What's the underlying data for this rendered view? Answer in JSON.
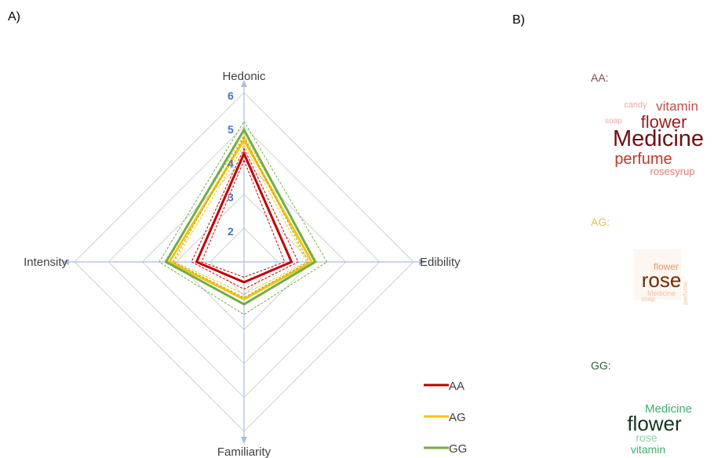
{
  "panels": {
    "a": "A)",
    "b": "B)"
  },
  "chart_data": [
    {
      "type": "radar",
      "axes": [
        "Hedonic",
        "Edibility",
        "Familiarity",
        "Intensity"
      ],
      "rlim": [
        1,
        6
      ],
      "ticks": [
        "2",
        "3",
        "4",
        "5",
        "6"
      ],
      "grid": true,
      "legend_position": "bottom-right",
      "series": [
        {
          "name": "AA",
          "color": "#C00000",
          "values": [
            4.2,
            2.4,
            1.6,
            2.4
          ],
          "ci_upper": [
            4.35,
            2.6,
            1.8,
            2.55
          ],
          "ci_lower": [
            4.0,
            2.2,
            1.45,
            2.25
          ]
        },
        {
          "name": "AG",
          "color": "#FFC000",
          "values": [
            4.6,
            3.0,
            2.1,
            3.2
          ],
          "ci_upper": [
            4.75,
            3.15,
            2.25,
            3.35
          ],
          "ci_lower": [
            4.45,
            2.85,
            1.95,
            3.05
          ]
        },
        {
          "name": "GG",
          "color": "#70AD47",
          "values": [
            4.9,
            3.1,
            2.25,
            3.3
          ],
          "ci_upper": [
            5.15,
            3.45,
            2.55,
            3.5
          ],
          "ci_lower": [
            4.7,
            2.9,
            2.05,
            3.1
          ]
        }
      ]
    },
    {
      "type": "wordcloud",
      "groups": [
        {
          "label": "AA:",
          "label_color": "#7F4F4F",
          "words": [
            {
              "text": "candy",
              "color": "#F2A5A5",
              "size": 11
            },
            {
              "text": "vitamin",
              "color": "#C0504D",
              "size": 17
            },
            {
              "text": "soap",
              "color": "#F2A5A5",
              "size": 10
            },
            {
              "text": "flower",
              "color": "#9E1B1B",
              "size": 22
            },
            {
              "text": "Medicine",
              "color": "#6E0F12",
              "size": 30
            },
            {
              "text": "perfume",
              "color": "#C0392B",
              "size": 20
            },
            {
              "text": "rosesyrup",
              "color": "#E07B70",
              "size": 13
            }
          ]
        },
        {
          "label": "AG:",
          "label_color": "#F5B95A",
          "words": [
            {
              "text": "flower",
              "color": "#E59866",
              "size": 12
            },
            {
              "text": "rose",
              "color": "#6E2C00",
              "size": 26
            },
            {
              "text": "Medicine",
              "color": "#F0C4A0",
              "size": 9
            },
            {
              "text": "soap",
              "color": "#F0C4A0",
              "size": 8
            },
            {
              "text": "perfume",
              "color": "#F0C4A0",
              "size": 8
            }
          ]
        },
        {
          "label": "GG:",
          "label_color": "#2E5E3A",
          "words": [
            {
              "text": "Medicine",
              "color": "#3FAE6A",
              "size": 15
            },
            {
              "text": "flower",
              "color": "#12351F",
              "size": 26
            },
            {
              "text": "rose",
              "color": "#8FD0A6",
              "size": 14
            },
            {
              "text": "vitamin",
              "color": "#3FAE6A",
              "size": 14
            }
          ]
        }
      ]
    }
  ]
}
